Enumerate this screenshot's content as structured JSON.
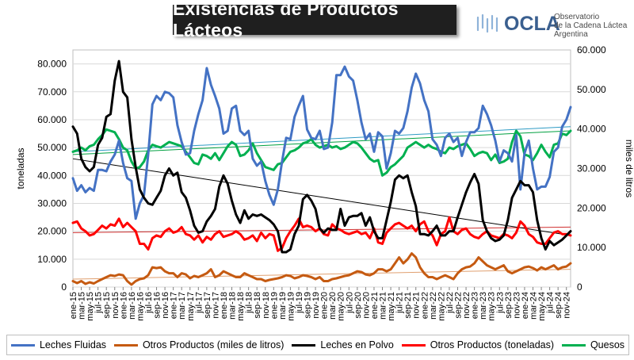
{
  "title": "Existencias de Productos Lácteos",
  "logo": {
    "word": "OCLA",
    "line1": "Observatorio",
    "line2": "de la Cadena Láctea",
    "line3": "Argentina"
  },
  "colors": {
    "leches_fluidas": "#4472c4",
    "otros_litros": "#c55a11",
    "leches_polvo": "#000000",
    "otros_toneladas": "#ff0000",
    "quesos": "#00b050",
    "trend_fluidas": "#2e9bc4",
    "trend_otros_litros": "#e0a070",
    "trend_polvo": "#000000",
    "trend_otros_ton": "#d03030",
    "trend_quesos": "#00a040"
  },
  "chart_data": {
    "type": "line",
    "ylabel": "toneladas",
    "y2label": "miles de litros",
    "ylim": [
      0,
      85000
    ],
    "y2lim": [
      0,
      60000
    ],
    "yticks": [
      "0",
      "10.000",
      "20.000",
      "30.000",
      "40.000",
      "50.000",
      "60.000",
      "70.000",
      "80.000"
    ],
    "y2ticks": [
      "0",
      "10.000",
      "20.000",
      "30.000",
      "40.000",
      "50.000",
      "60.000"
    ],
    "x_first": "ene-15",
    "x_last": "nov-24",
    "xticks": [
      "ene-15",
      "mar-15",
      "may-15",
      "jul-15",
      "sep-15",
      "nov-15",
      "ene-16",
      "mar-16",
      "may-16",
      "jul-16",
      "sep-16",
      "nov-16",
      "ene-17",
      "mar-17",
      "may-17",
      "jul-17",
      "sep-17",
      "nov-17",
      "ene-18",
      "mar-18",
      "may-18",
      "jul-18",
      "sep-18",
      "nov-18",
      "ene-19",
      "mar-19",
      "may-19",
      "jul-19",
      "sep-19",
      "nov-19",
      "ene-20",
      "mar-20",
      "may-20",
      "jul-20",
      "sep-20",
      "nov-20",
      "ene-21",
      "mar-21",
      "may-21",
      "jul-21",
      "sep-21",
      "nov-21",
      "ene-22",
      "mar-22",
      "may-22",
      "jul-22",
      "sep-22",
      "nov-22",
      "ene-23",
      "mar-23",
      "may-23",
      "jul-23",
      "sep-23",
      "nov-23",
      "ene-24",
      "mar-24",
      "may-24",
      "jul-24",
      "sep-24",
      "nov-24"
    ],
    "grid": true,
    "legend_position": "bottom",
    "series": [
      {
        "name": "Leches Fluidas",
        "axis": "left",
        "trend": [
          48500,
          57500
        ],
        "values": [
          39000,
          34500,
          36500,
          34000,
          35500,
          34500,
          42000,
          42000,
          41500,
          45000,
          47500,
          52500,
          44500,
          39000,
          38000,
          24500,
          30000,
          33000,
          47500,
          65500,
          68500,
          67000,
          70000,
          69500,
          68000,
          58000,
          52000,
          47500,
          48000,
          56000,
          62000,
          67000,
          78500,
          72500,
          68500,
          64000,
          55000,
          56000,
          64000,
          65000,
          56000,
          54500,
          56000,
          46000,
          43500,
          45000,
          38000,
          33000,
          29500,
          35000,
          45000,
          53500,
          53000,
          61000,
          65000,
          68500,
          56500,
          53500,
          53000,
          56000,
          49500,
          50000,
          59000,
          76000,
          76000,
          79000,
          75500,
          74000,
          67000,
          59000,
          53000,
          55000,
          48500,
          55500,
          54000,
          42500,
          48000,
          56000,
          55000,
          57000,
          63000,
          71500,
          76500,
          73000,
          67000,
          63000,
          53000,
          51000,
          47000,
          53500,
          55000,
          52000,
          53500,
          47000,
          52000,
          55500,
          55500,
          57000,
          65000,
          62000,
          58000,
          52500,
          45000,
          49000,
          48000,
          45000,
          54500,
          35000,
          48000,
          52500,
          42500,
          35000,
          36000,
          36000,
          39500,
          48500,
          50000,
          57500,
          60000,
          64500
        ]
      },
      {
        "name": "Otros Productos (miles de litros)",
        "axis": "right",
        "trend": [
          2000,
          4500
        ],
        "values": [
          1500,
          1000,
          1500,
          800,
          1200,
          900,
          1500,
          2000,
          2500,
          3000,
          2800,
          3200,
          3000,
          1500,
          600,
          1500,
          2000,
          2200,
          3000,
          5000,
          4800,
          5000,
          4000,
          3500,
          3500,
          2500,
          3500,
          3200,
          2200,
          2800,
          2500,
          3000,
          3500,
          4500,
          2500,
          3000,
          4000,
          3500,
          3000,
          2500,
          2500,
          3500,
          3000,
          2500,
          2000,
          2000,
          1500,
          1800,
          2000,
          2200,
          2500,
          3000,
          2800,
          2200,
          2500,
          3000,
          2800,
          2500,
          2000,
          2500,
          1500,
          1500,
          2000,
          2200,
          2500,
          2800,
          3000,
          3500,
          4000,
          3800,
          3200,
          3000,
          3500,
          4500,
          4500,
          4000,
          4500,
          6000,
          7500,
          6000,
          7000,
          8500,
          7500,
          5000,
          3500,
          2500,
          2500,
          2000,
          2500,
          3000,
          2500,
          2000,
          3500,
          4500,
          5000,
          5200,
          6000,
          7500,
          6500,
          5500,
          5000,
          4500,
          5000,
          5500,
          4000,
          3500,
          4000,
          4500,
          5000,
          5200,
          4800,
          4200,
          5000,
          4500,
          5000,
          5500,
          4500,
          5000,
          5200,
          6000
        ]
      },
      {
        "name": "Leches en Polvo",
        "axis": "left",
        "trend": [
          46000,
          18500
        ],
        "values": [
          57500,
          55000,
          46000,
          43000,
          41500,
          43000,
          51000,
          53500,
          61000,
          62000,
          74000,
          81000,
          70000,
          68000,
          53000,
          43000,
          35000,
          32000,
          30000,
          29500,
          32000,
          34500,
          40000,
          42500,
          40000,
          41000,
          34000,
          32000,
          27500,
          22000,
          19500,
          20000,
          23500,
          25500,
          28000,
          36000,
          40000,
          37000,
          31000,
          26000,
          23000,
          27500,
          24500,
          26000,
          25500,
          26000,
          25000,
          24000,
          22500,
          20000,
          12500,
          12500,
          13500,
          19000,
          22000,
          31500,
          33000,
          31000,
          28000,
          21000,
          19500,
          21000,
          20500,
          20500,
          28000,
          22000,
          25000,
          25500,
          25500,
          26500,
          22000,
          25000,
          20000,
          17500,
          17500,
          24000,
          30500,
          38500,
          40000,
          39000,
          40000,
          34000,
          29000,
          19000,
          19000,
          18500,
          20000,
          22000,
          18500,
          18500,
          20000,
          20000,
          25000,
          29500,
          34000,
          37500,
          40500,
          37000,
          24000,
          20000,
          17500,
          16500,
          17000,
          18500,
          24000,
          32000,
          35000,
          38000,
          36500,
          36500,
          34000,
          24000,
          17500,
          13500,
          16500,
          15000,
          16000,
          17000,
          18500,
          20000
        ]
      },
      {
        "name": "Otros Productos (toneladas)",
        "axis": "left",
        "trend": [
          19500,
          21500
        ],
        "values": [
          23000,
          23500,
          21000,
          20000,
          18500,
          19000,
          20500,
          22000,
          21000,
          22500,
          22000,
          24500,
          21500,
          23000,
          21500,
          20000,
          15500,
          15500,
          13500,
          17500,
          18500,
          18000,
          20000,
          21000,
          19500,
          20000,
          21500,
          19000,
          18500,
          17000,
          18500,
          16000,
          18000,
          17000,
          19000,
          20000,
          18000,
          18500,
          19000,
          20000,
          19000,
          17000,
          17500,
          18500,
          16500,
          19500,
          17500,
          19000,
          18500,
          13000,
          14000,
          17500,
          20000,
          22000,
          24500,
          21500,
          22000,
          21500,
          20000,
          21000,
          19000,
          18500,
          22500,
          21000,
          20500,
          19500,
          19000,
          19500,
          20000,
          19000,
          19500,
          17500,
          21000,
          16000,
          15500,
          19500,
          21000,
          22500,
          23000,
          22000,
          21000,
          22000,
          20000,
          22500,
          23500,
          20000,
          18500,
          15000,
          19000,
          20000,
          25000,
          20000,
          19000,
          20500,
          21000,
          19000,
          18000,
          17500,
          19000,
          20000,
          18500,
          18000,
          17500,
          19000,
          18500,
          17500,
          19500,
          23500,
          22000,
          19000,
          18000,
          16000,
          15500,
          15500,
          17500,
          19500,
          20000,
          19000,
          19000,
          18500
        ]
      },
      {
        "name": "Quesos",
        "axis": "left",
        "trend": [
          47500,
          56000
        ],
        "values": [
          48500,
          49000,
          50000,
          49000,
          50500,
          51000,
          53000,
          54500,
          56500,
          56000,
          55500,
          53000,
          50000,
          49000,
          45000,
          42500,
          43000,
          45000,
          49000,
          51000,
          50500,
          50000,
          51000,
          52000,
          51500,
          51000,
          50500,
          48500,
          46500,
          44500,
          44000,
          47500,
          47000,
          46000,
          48000,
          45500,
          48000,
          50500,
          52000,
          51000,
          47000,
          47500,
          49000,
          51500,
          48000,
          45500,
          43000,
          42500,
          42000,
          44000,
          44500,
          46500,
          48500,
          49000,
          50000,
          51500,
          52000,
          53000,
          51000,
          50000,
          50500,
          51000,
          50000,
          50500,
          49500,
          50000,
          51000,
          52000,
          51500,
          50000,
          48000,
          46000,
          45000,
          45500,
          40000,
          41000,
          43000,
          44000,
          45500,
          47000,
          50000,
          51000,
          52000,
          51000,
          50000,
          51000,
          50000,
          49500,
          48500,
          48000,
          50000,
          49500,
          50500,
          51000,
          51500,
          49500,
          47000,
          48000,
          48500,
          48000,
          45500,
          47500,
          44500,
          45000,
          46000,
          52000,
          56000,
          54000,
          47500,
          47000,
          45500,
          48000,
          51000,
          48500,
          46500,
          51000,
          51500,
          55000,
          54500,
          56000
        ]
      }
    ]
  },
  "legend": [
    {
      "label": "Leches Fluidas"
    },
    {
      "label": "Otros Productos (miles de litros)"
    },
    {
      "label": "Leches en Polvo"
    },
    {
      "label": "Otros Productos (toneladas)"
    },
    {
      "label": "Quesos"
    }
  ]
}
